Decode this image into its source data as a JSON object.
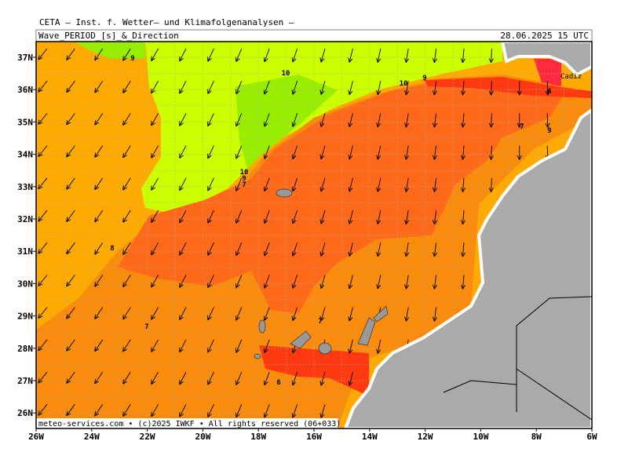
{
  "header": {
    "title": "CETA — Inst. f. Wetter— und Klimafolgenanalysen —",
    "product": "Wave_PERIOD_[s]_&_Direction",
    "valid": "28.06.2025 15 UTC"
  },
  "axes": {
    "lon": [
      "26W",
      "24W",
      "22W",
      "20W",
      "18W",
      "16W",
      "14W",
      "12W",
      "10W",
      "8W",
      "6W"
    ],
    "lat": [
      "37N",
      "36N",
      "35N",
      "34N",
      "33N",
      "32N",
      "31N",
      "30N",
      "29N",
      "28N",
      "27N",
      "26N"
    ]
  },
  "contour_labels": [
    "9",
    "10",
    "10",
    "9",
    "6",
    "7",
    "9",
    "10",
    "9",
    "7",
    "8",
    "7",
    "7",
    "6"
  ],
  "place": "Cadiz",
  "footer": "meteo-services.com • (c)2025 IWKF • All rights reserved (06+033)"
}
